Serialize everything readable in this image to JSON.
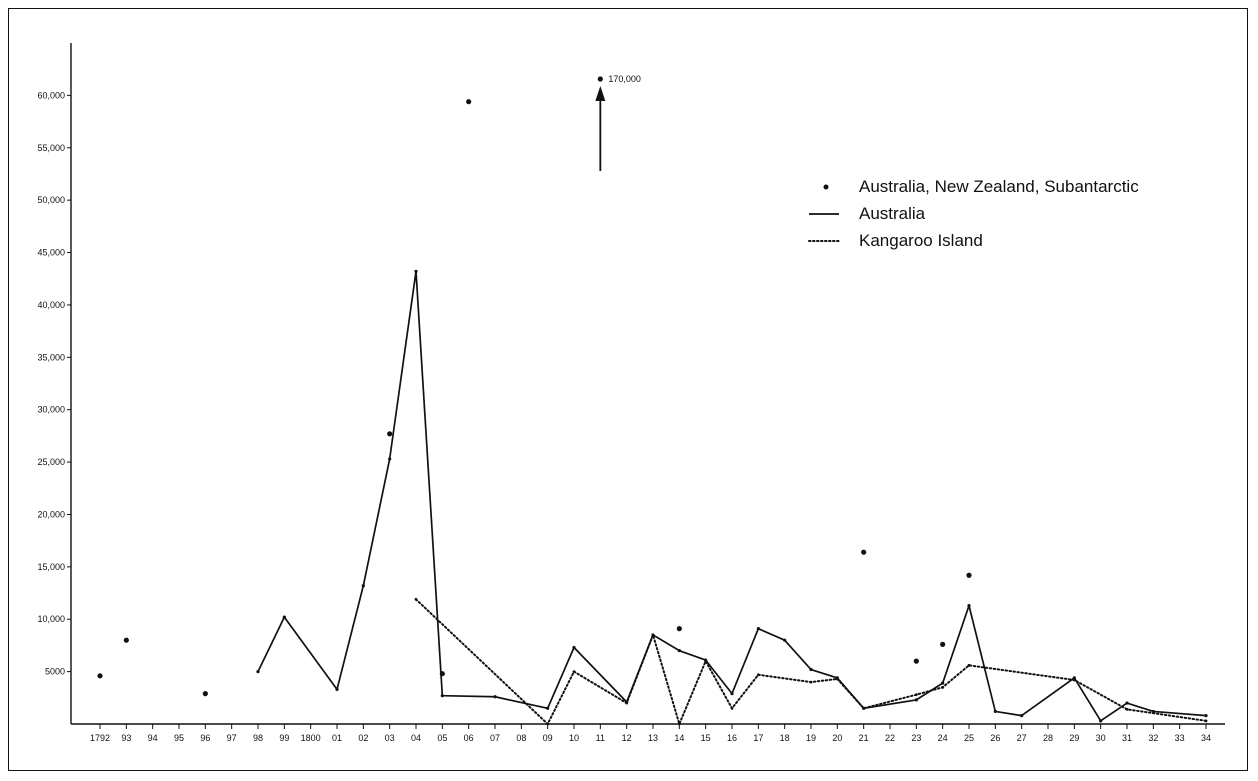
{
  "chart_data": {
    "type": "line",
    "categories": [
      "1792",
      "93",
      "94",
      "95",
      "96",
      "97",
      "98",
      "99",
      "1800",
      "01",
      "02",
      "03",
      "04",
      "05",
      "06",
      "07",
      "08",
      "09",
      "10",
      "11",
      "12",
      "13",
      "14",
      "15",
      "16",
      "17",
      "18",
      "19",
      "20",
      "21",
      "22",
      "23",
      "24",
      "25",
      "26",
      "27",
      "28",
      "29",
      "30",
      "31",
      "32",
      "33",
      "34"
    ],
    "y_ticks": [
      5000,
      10000,
      15000,
      20000,
      25000,
      30000,
      35000,
      40000,
      45000,
      50000,
      55000,
      60000
    ],
    "y_tick_labels": [
      "5000",
      "10,000",
      "15,000",
      "20,000",
      "25,000",
      "30,000",
      "35,000",
      "40,000",
      "45,000",
      "50,000",
      "55,000",
      "60,000"
    ],
    "ylim": [
      0,
      65000
    ],
    "grid": false,
    "legend_position": "top-right",
    "series": [
      {
        "name": "Australia, New Zealand, Subantarctic",
        "style": "dots",
        "points": [
          {
            "x": "1792",
            "y": 4600
          },
          {
            "x": "93",
            "y": 8000
          },
          {
            "x": "96",
            "y": 2900
          },
          {
            "x": "03",
            "y": 27700
          },
          {
            "x": "05",
            "y": 4800
          },
          {
            "x": "06",
            "y": 59400
          },
          {
            "x": "14",
            "y": 9100
          },
          {
            "x": "21",
            "y": 16400
          },
          {
            "x": "23",
            "y": 6000
          },
          {
            "x": "24",
            "y": 7600
          },
          {
            "x": "25",
            "y": 14200
          }
        ]
      },
      {
        "name": "Australia",
        "style": "solid",
        "points": [
          {
            "x": "98",
            "y": 5000
          },
          {
            "x": "99",
            "y": 10200
          },
          {
            "x": "01",
            "y": 3300
          },
          {
            "x": "02",
            "y": 13200
          },
          {
            "x": "03",
            "y": 25300
          },
          {
            "x": "04",
            "y": 43200
          },
          {
            "x": "05",
            "y": 2700
          },
          {
            "x": "07",
            "y": 2600
          },
          {
            "x": "09",
            "y": 1500
          },
          {
            "x": "10",
            "y": 7300
          },
          {
            "x": "12",
            "y": 2100
          },
          {
            "x": "13",
            "y": 8500
          },
          {
            "x": "14",
            "y": 7000
          },
          {
            "x": "15",
            "y": 6100
          },
          {
            "x": "16",
            "y": 2900
          },
          {
            "x": "17",
            "y": 9100
          },
          {
            "x": "18",
            "y": 8000
          },
          {
            "x": "19",
            "y": 5200
          },
          {
            "x": "20",
            "y": 4400
          },
          {
            "x": "21",
            "y": 1500
          },
          {
            "x": "23",
            "y": 2300
          },
          {
            "x": "24",
            "y": 3900
          },
          {
            "x": "25",
            "y": 11300
          },
          {
            "x": "26",
            "y": 1200
          },
          {
            "x": "27",
            "y": 800
          },
          {
            "x": "29",
            "y": 4400
          },
          {
            "x": "30",
            "y": 300
          },
          {
            "x": "31",
            "y": 2000
          },
          {
            "x": "32",
            "y": 1200
          },
          {
            "x": "34",
            "y": 800
          }
        ]
      },
      {
        "name": "Kangaroo Island",
        "style": "dotted",
        "points": [
          {
            "x": "04",
            "y": 11900
          },
          {
            "x": "09",
            "y": 0
          },
          {
            "x": "10",
            "y": 5000
          },
          {
            "x": "12",
            "y": 2000
          },
          {
            "x": "13",
            "y": 8500
          },
          {
            "x": "14",
            "y": 0
          },
          {
            "x": "15",
            "y": 6000
          },
          {
            "x": "16",
            "y": 1500
          },
          {
            "x": "17",
            "y": 4700
          },
          {
            "x": "19",
            "y": 4000
          },
          {
            "x": "20",
            "y": 4300
          },
          {
            "x": "21",
            "y": 1500
          },
          {
            "x": "23",
            "y": 2800
          },
          {
            "x": "24",
            "y": 3500
          },
          {
            "x": "25",
            "y": 5600
          },
          {
            "x": "29",
            "y": 4200
          },
          {
            "x": "31",
            "y": 1400
          },
          {
            "x": "34",
            "y": 300
          }
        ]
      }
    ],
    "annotation": {
      "text": "170,000",
      "x": "11",
      "value": 170000
    }
  }
}
